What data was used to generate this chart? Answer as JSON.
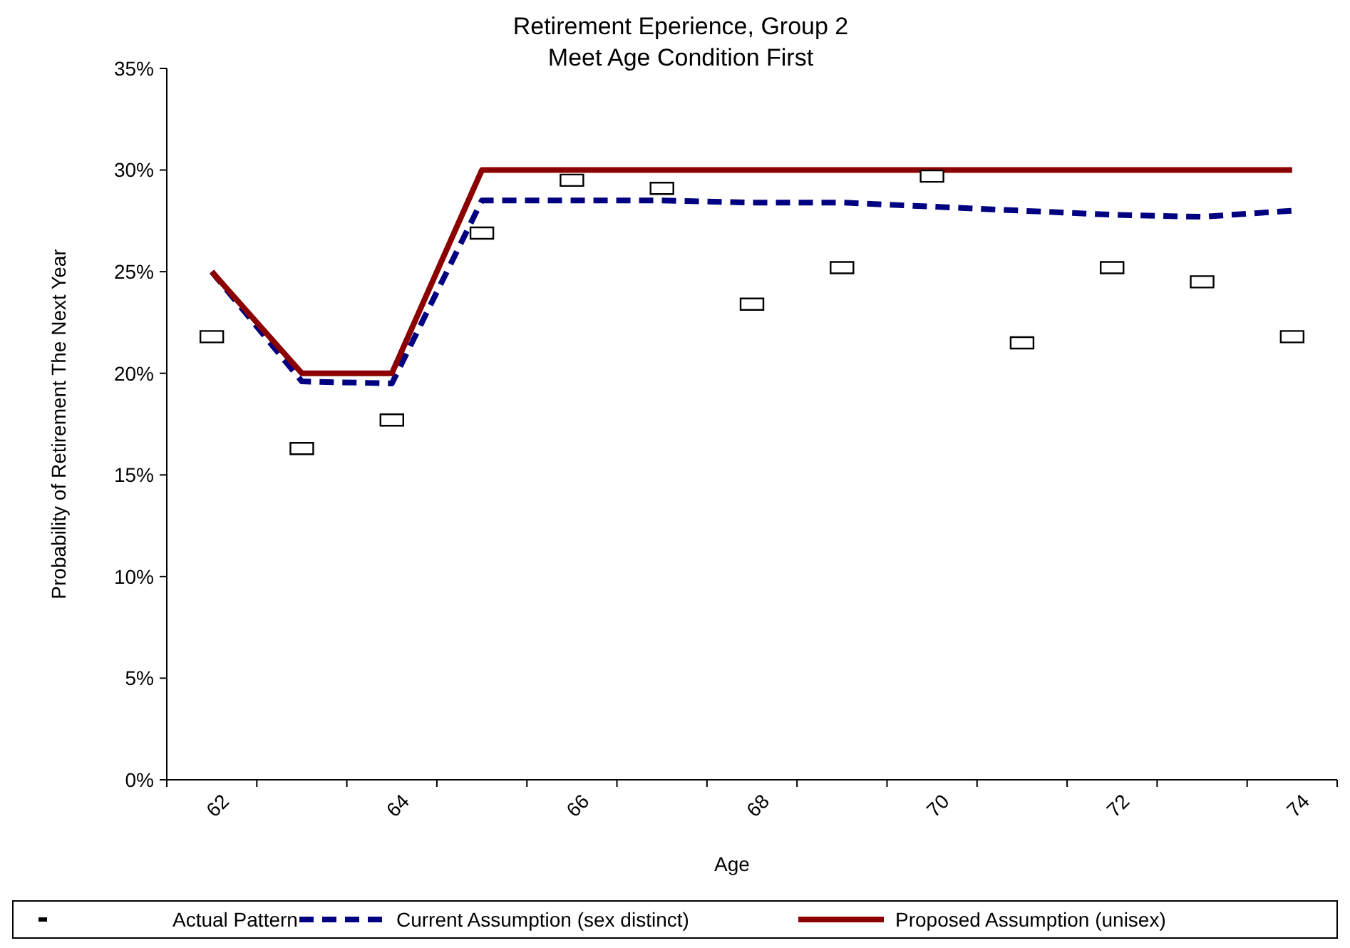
{
  "chart_data": {
    "type": "line",
    "title": "Retirement Eperience, Group 2",
    "subtitle": "Meet Age Condition First",
    "xlabel": "Age",
    "ylabel": "Probability of Retirement The Next Year",
    "categories": [
      "62",
      null,
      "64",
      null,
      "66",
      null,
      "68",
      null,
      "70",
      null,
      "72",
      null,
      "74"
    ],
    "ylim": [
      0,
      35
    ],
    "yticks": [
      {
        "value": 0,
        "label": "0%"
      },
      {
        "value": 5,
        "label": "5%"
      },
      {
        "value": 10,
        "label": "10%"
      },
      {
        "value": 15,
        "label": "15%"
      },
      {
        "value": 20,
        "label": "20%"
      },
      {
        "value": 25,
        "label": "25%"
      },
      {
        "value": 30,
        "label": "30%"
      },
      {
        "value": 35,
        "label": "35%"
      }
    ],
    "grid": false,
    "legend": "bottom",
    "series": [
      {
        "name": "Actual Pattern",
        "type": "scatter",
        "marker": "square",
        "color": "#000000",
        "values": [
          21.8,
          16.3,
          17.7,
          26.9,
          29.5,
          29.1,
          23.4,
          25.2,
          29.7,
          21.5,
          25.2,
          24.5,
          21.8
        ]
      },
      {
        "name": "Current Assumption (sex distinct)",
        "line_style": "dashed",
        "color": "#000080",
        "values": [
          25,
          19.6,
          19.5,
          28.5,
          28.5,
          28.5,
          28.4,
          28.4,
          28.2,
          28.0,
          27.8,
          27.7,
          28.0
        ]
      },
      {
        "name": "Proposed Assumption (unisex)",
        "line_style": "solid",
        "color": "#8b0000",
        "values": [
          25,
          20,
          20,
          30,
          30,
          30,
          30,
          30,
          30,
          30,
          30,
          30,
          30
        ]
      }
    ]
  }
}
